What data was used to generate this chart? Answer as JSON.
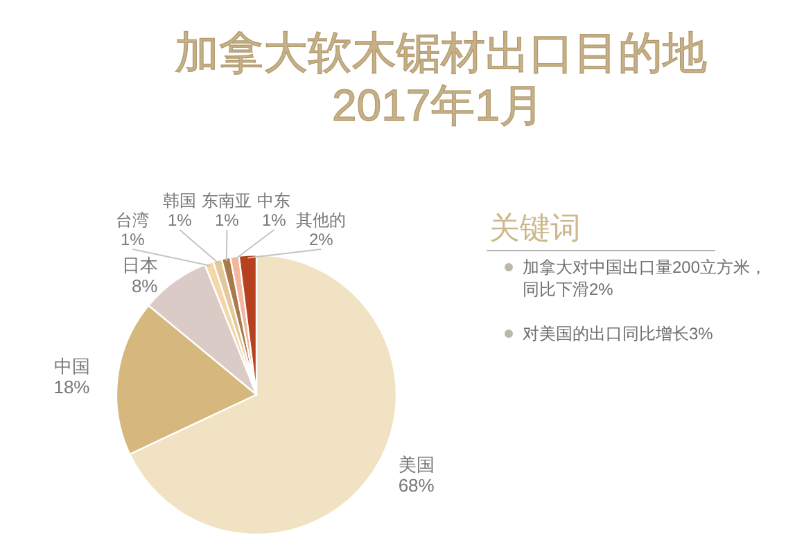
{
  "chart_data": {
    "type": "pie",
    "title": "加拿大软木锯材出口目的地",
    "subtitle": "2017年1月",
    "categories": [
      "美国",
      "中国",
      "日本",
      "台湾",
      "韩国",
      "东南亚",
      "中东",
      "其他的"
    ],
    "values": [
      68,
      18,
      8,
      1,
      1,
      1,
      1,
      2
    ],
    "value_labels": [
      "68%",
      "18%",
      "8%",
      "1%",
      "1%",
      "1%",
      "1%",
      "2%"
    ],
    "colors": [
      "#f0e2c2",
      "#d6b77e",
      "#dbcbc6",
      "#f4d6a8",
      "#e3c99a",
      "#a97a4c",
      "#f4b69c",
      "#b7411f"
    ],
    "annotations": [
      "关键词",
      "加拿大对中国出口量200立方米，同比下滑2%",
      "对美国的出口同比增长3%"
    ]
  }
}
